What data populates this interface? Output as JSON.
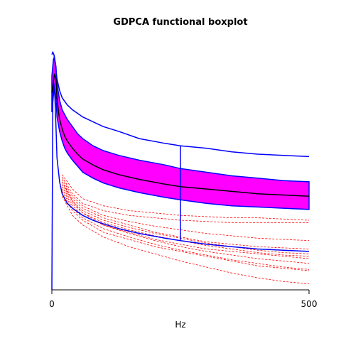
{
  "chart_data": {
    "type": "line",
    "subtype": "functional-boxplot",
    "title": "GDPCA functional boxplot",
    "xlabel": "Hz",
    "ylabel": "",
    "xlim": [
      0,
      500
    ],
    "ylim": [
      0,
      1
    ],
    "x_ticks": [
      0,
      500
    ],
    "grid": false,
    "legend": "none",
    "colors": {
      "band": "#ff00ff",
      "envelope": "#0000ff",
      "median": "#000000",
      "outliers": "#ff0000"
    },
    "median": {
      "x": [
        0,
        3,
        5,
        8,
        10,
        13,
        15,
        20,
        25,
        30,
        40,
        50,
        60,
        80,
        100,
        130,
        170,
        220,
        250,
        300,
        350,
        400,
        450,
        500
      ],
      "y": [
        0.82,
        0.86,
        0.9,
        0.88,
        0.8,
        0.74,
        0.71,
        0.67,
        0.64,
        0.62,
        0.59,
        0.565,
        0.545,
        0.52,
        0.5,
        0.48,
        0.46,
        0.44,
        0.43,
        0.42,
        0.41,
        0.4,
        0.395,
        0.39
      ]
    },
    "central_region": {
      "x": [
        0,
        3,
        5,
        8,
        10,
        15,
        20,
        25,
        30,
        40,
        50,
        60,
        80,
        100,
        130,
        170,
        220,
        250,
        300,
        350,
        400,
        450,
        500
      ],
      "upper": [
        0.89,
        0.96,
        0.97,
        0.93,
        0.86,
        0.79,
        0.75,
        0.73,
        0.71,
        0.68,
        0.65,
        0.63,
        0.6,
        0.58,
        0.56,
        0.54,
        0.52,
        0.505,
        0.49,
        0.475,
        0.465,
        0.455,
        0.45
      ],
      "lower": [
        0.74,
        0.81,
        0.84,
        0.8,
        0.72,
        0.66,
        0.62,
        0.59,
        0.57,
        0.54,
        0.515,
        0.49,
        0.465,
        0.445,
        0.425,
        0.405,
        0.385,
        0.375,
        0.36,
        0.35,
        0.345,
        0.34,
        0.335
      ]
    },
    "envelope": {
      "x": [
        0,
        2,
        4,
        6,
        8,
        10,
        15,
        20,
        30,
        40,
        60,
        80,
        100,
        130,
        170,
        220,
        250,
        300,
        350,
        400,
        450,
        500
      ],
      "upper": [
        0.98,
        0.99,
        0.98,
        0.95,
        0.91,
        0.88,
        0.83,
        0.8,
        0.77,
        0.75,
        0.72,
        0.7,
        0.68,
        0.66,
        0.63,
        0.61,
        0.6,
        0.59,
        0.575,
        0.565,
        0.56,
        0.555
      ],
      "lower": [
        0.0,
        0.82,
        0.86,
        0.8,
        0.68,
        0.55,
        0.45,
        0.4,
        0.36,
        0.34,
        0.31,
        0.29,
        0.275,
        0.255,
        0.235,
        0.215,
        0.205,
        0.19,
        0.18,
        0.17,
        0.165,
        0.16
      ]
    },
    "whisker": {
      "x": 250,
      "y_top": 0.6,
      "y_bottom": 0.205
    },
    "outliers": [
      {
        "x": [
          20,
          40,
          60,
          100,
          150,
          200,
          250,
          300,
          350,
          400,
          450,
          500
        ],
        "y": [
          0.45,
          0.38,
          0.34,
          0.3,
          0.27,
          0.24,
          0.22,
          0.2,
          0.19,
          0.18,
          0.175,
          0.17
        ]
      },
      {
        "x": [
          20,
          40,
          60,
          100,
          150,
          200,
          250,
          300,
          350,
          400,
          450,
          500
        ],
        "y": [
          0.42,
          0.35,
          0.31,
          0.27,
          0.24,
          0.21,
          0.19,
          0.17,
          0.16,
          0.15,
          0.14,
          0.13
        ]
      },
      {
        "x": [
          20,
          40,
          60,
          100,
          150,
          200,
          250,
          300,
          350,
          400,
          450,
          500
        ],
        "y": [
          0.4,
          0.33,
          0.29,
          0.24,
          0.21,
          0.18,
          0.16,
          0.14,
          0.12,
          0.1,
          0.09,
          0.08
        ]
      },
      {
        "x": [
          20,
          40,
          60,
          100,
          150,
          200,
          250,
          300,
          350,
          400,
          450,
          500
        ],
        "y": [
          0.47,
          0.4,
          0.36,
          0.33,
          0.31,
          0.3,
          0.29,
          0.285,
          0.28,
          0.28,
          0.28,
          0.28
        ]
      },
      {
        "x": [
          20,
          40,
          60,
          100,
          150,
          200,
          250,
          300,
          350,
          400,
          450,
          500
        ],
        "y": [
          0.44,
          0.37,
          0.33,
          0.29,
          0.26,
          0.235,
          0.215,
          0.195,
          0.18,
          0.165,
          0.155,
          0.15
        ]
      },
      {
        "x": [
          20,
          40,
          60,
          100,
          150,
          200,
          250,
          300,
          350,
          400,
          450,
          500
        ],
        "y": [
          0.41,
          0.34,
          0.3,
          0.255,
          0.22,
          0.19,
          0.165,
          0.145,
          0.125,
          0.11,
          0.095,
          0.085
        ]
      },
      {
        "x": [
          20,
          40,
          60,
          100,
          150,
          200,
          250,
          300,
          350,
          400,
          450,
          500
        ],
        "y": [
          0.39,
          0.31,
          0.27,
          0.22,
          0.18,
          0.15,
          0.12,
          0.095,
          0.07,
          0.05,
          0.035,
          0.025
        ]
      },
      {
        "x": [
          20,
          40,
          60,
          100,
          150,
          200,
          250,
          300,
          350,
          400,
          450,
          500
        ],
        "y": [
          0.46,
          0.39,
          0.35,
          0.31,
          0.285,
          0.265,
          0.25,
          0.235,
          0.225,
          0.215,
          0.21,
          0.205
        ]
      },
      {
        "x": [
          20,
          40,
          60,
          100,
          150,
          200,
          250,
          300,
          350,
          400,
          450,
          500
        ],
        "y": [
          0.43,
          0.36,
          0.32,
          0.28,
          0.25,
          0.225,
          0.205,
          0.185,
          0.17,
          0.155,
          0.145,
          0.14
        ]
      },
      {
        "x": [
          20,
          40,
          60,
          100,
          150,
          200,
          250,
          300,
          350,
          400,
          450,
          500
        ],
        "y": [
          0.45,
          0.37,
          0.32,
          0.27,
          0.235,
          0.205,
          0.18,
          0.16,
          0.145,
          0.13,
          0.12,
          0.11
        ]
      },
      {
        "x": [
          20,
          40,
          60,
          100,
          150,
          200,
          250,
          300,
          350,
          400,
          450,
          500
        ],
        "y": [
          0.48,
          0.42,
          0.38,
          0.35,
          0.33,
          0.32,
          0.31,
          0.305,
          0.3,
          0.3,
          0.295,
          0.29
        ]
      }
    ]
  }
}
